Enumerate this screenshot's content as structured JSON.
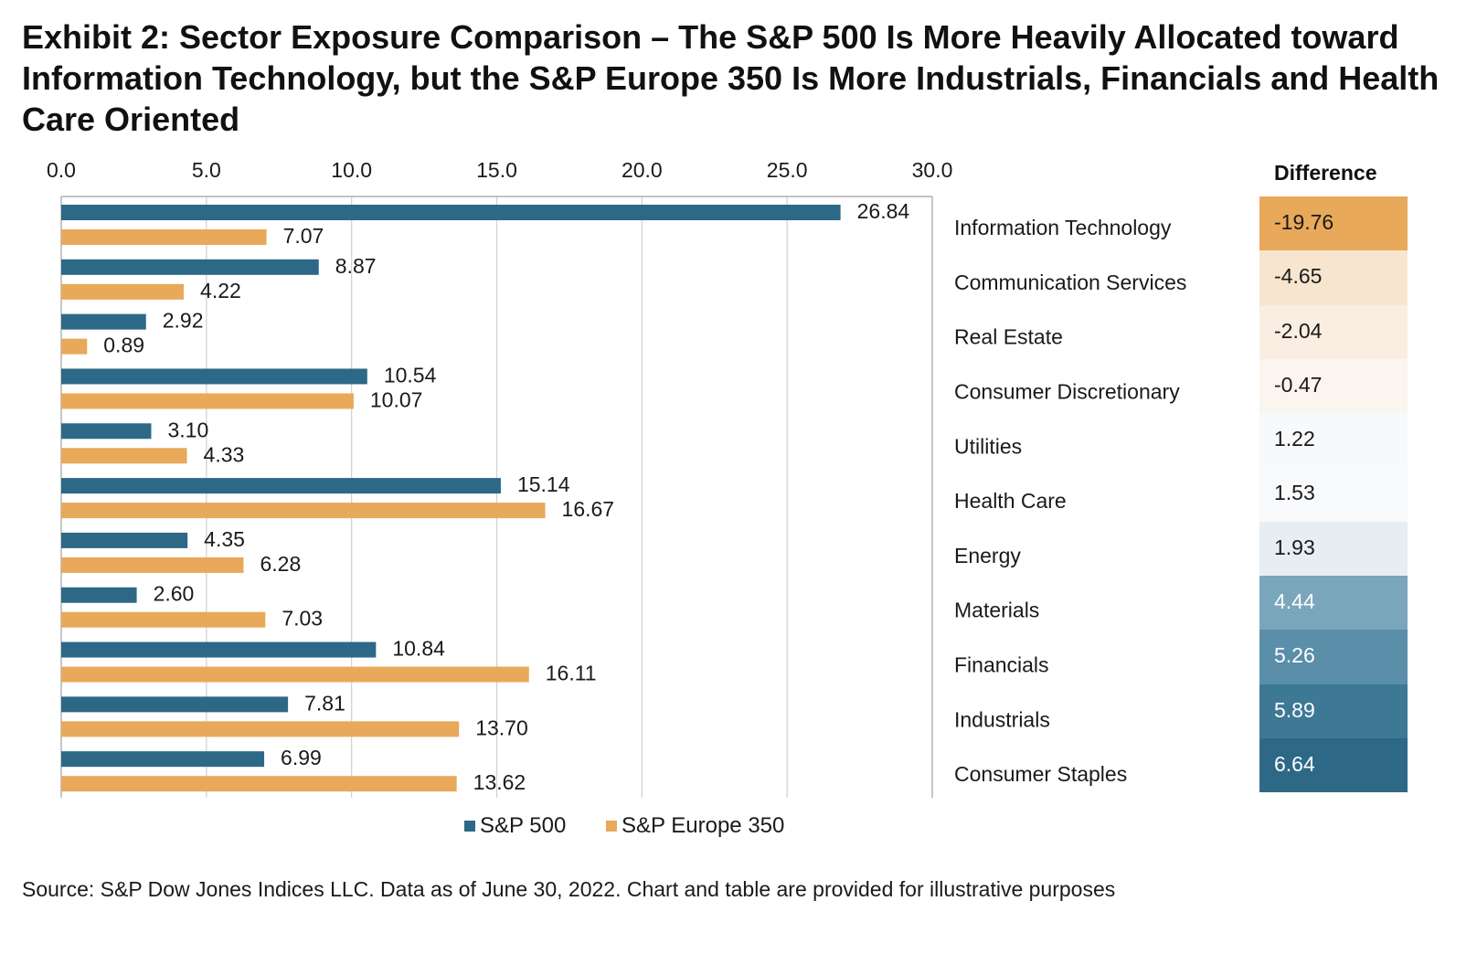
{
  "title": "Exhibit 2: Sector Exposure Comparison – The S&P 500 Is More Heavily Allocated toward Information Technology, but the S&P Europe 350 Is More Industrials, Financials and Health Care Oriented",
  "source": "Source: S&P Dow Jones Indices LLC. Data as of June 30, 2022. Chart and table are provided for illustrative purposes",
  "colors": {
    "sp500": "#2d6987",
    "europe350": "#e8a95a",
    "grid": "#d0d0d0",
    "axis": "#a0a0a0"
  },
  "chart_data": {
    "type": "bar",
    "orientation": "horizontal",
    "categories": [
      "Information Technology",
      "Communication Services",
      "Real Estate",
      "Consumer Discretionary",
      "Utilities",
      "Health Care",
      "Energy",
      "Materials",
      "Financials",
      "Industrials",
      "Consumer Staples"
    ],
    "series": [
      {
        "name": "S&P 500",
        "values": [
          26.84,
          8.87,
          2.92,
          10.54,
          3.1,
          15.14,
          4.35,
          2.6,
          10.84,
          7.81,
          6.99
        ]
      },
      {
        "name": "S&P Europe 350",
        "values": [
          7.07,
          4.22,
          0.89,
          10.07,
          4.33,
          16.67,
          6.28,
          7.03,
          16.11,
          13.7,
          13.62
        ]
      }
    ],
    "xlim": [
      0,
      30
    ],
    "xticks": [
      "0.0",
      "5.0",
      "10.0",
      "15.0",
      "20.0",
      "25.0",
      "30.0"
    ],
    "grid": true,
    "legend_position": "bottom",
    "title": "",
    "xlabel": "",
    "ylabel": ""
  },
  "difference_table": {
    "header": "Difference",
    "values": [
      "-19.76",
      "-4.65",
      "-2.04",
      "-0.47",
      "1.22",
      "1.53",
      "1.93",
      "4.44",
      "5.26",
      "5.89",
      "6.64"
    ],
    "colors": [
      "#e8a95a",
      "#f7e5cf",
      "#faeee2",
      "#fbf5ef",
      "#f8f9fb",
      "#f9fafc",
      "#e7eef3",
      "#7aa6bc",
      "#5a8ea9",
      "#3d7895",
      "#2d6987"
    ],
    "text_colors": [
      "#1a1a1a",
      "#1a1a1a",
      "#1a1a1a",
      "#1a1a1a",
      "#1a1a1a",
      "#1a1a1a",
      "#1a1a1a",
      "#ffffff",
      "#ffffff",
      "#ffffff",
      "#ffffff"
    ]
  }
}
